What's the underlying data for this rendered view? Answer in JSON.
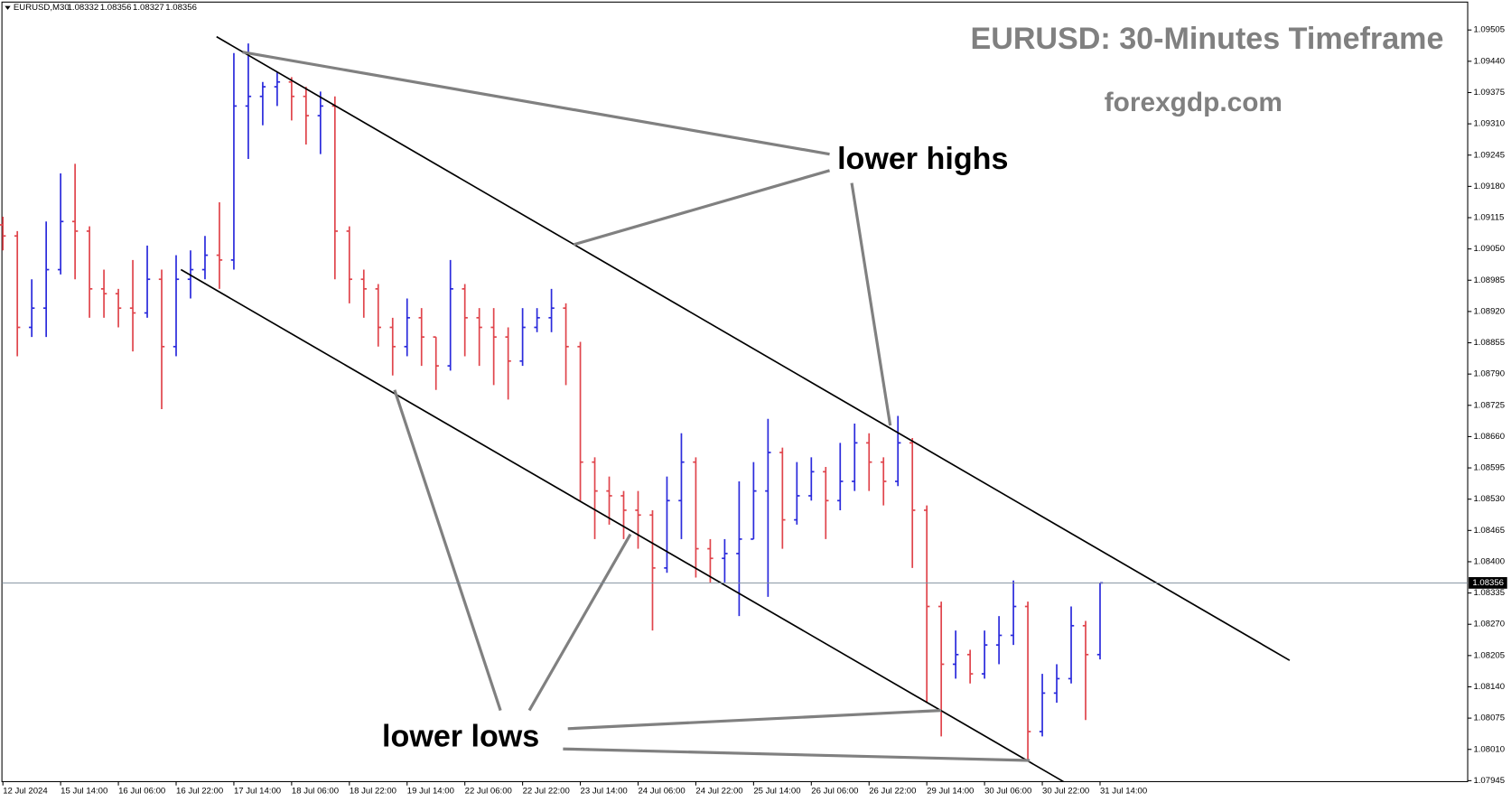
{
  "chart_data": {
    "type": "ohlc",
    "symbol": "EURUSD,M30",
    "header_ohlc": [
      1.08332,
      1.08356,
      1.08327,
      1.08356
    ],
    "title": "EURUSD: 30-Minutes Timeframe",
    "subtitle": "forexgdp.com",
    "annotations": [
      "lower highs",
      "lower lows"
    ],
    "up_color": "#2b2bdc",
    "down_color": "#e0454c",
    "current_price": 1.08356,
    "categories": [
      "12 Jul 2024",
      null,
      null,
      null,
      "15 Jul 14:00",
      null,
      null,
      null,
      "16 Jul 06:00",
      null,
      null,
      null,
      "16 Jul 22:00",
      null,
      null,
      null,
      "17 Jul 14:00",
      null,
      null,
      null,
      "18 Jul 06:00",
      null,
      null,
      null,
      "18 Jul 22:00",
      null,
      null,
      null,
      "19 Jul 14:00",
      null,
      null,
      null,
      "22 Jul 06:00",
      null,
      null,
      null,
      "22 Jul 22:00",
      null,
      null,
      null,
      "23 Jul 14:00",
      null,
      null,
      null,
      "24 Jul 06:00",
      null,
      null,
      null,
      "24 Jul 22:00",
      null,
      null,
      null,
      "25 Jul 14:00",
      null,
      null,
      null,
      "26 Jul 06:00",
      null,
      null,
      null,
      "26 Jul 22:00",
      null,
      null,
      null,
      "29 Jul 14:00",
      null,
      null,
      null,
      "30 Jul 06:00",
      null,
      null,
      null,
      "30 Jul 22:00",
      null,
      null,
      null,
      "31 Jul 14:00"
    ],
    "open": [
      1.091,
      1.09077,
      1.08887,
      1.08927,
      1.09007,
      1.09107,
      1.09087,
      1.08967,
      1.08957,
      1.08927,
      1.08917,
      1.08987,
      1.08847,
      1.08987,
      1.09007,
      1.09037,
      1.09027,
      1.09347,
      1.09367,
      1.09387,
      1.09397,
      1.09367,
      1.09327,
      1.09347,
      1.09087,
      1.08987,
      1.08967,
      1.08887,
      1.08847,
      1.08907,
      1.08867,
      1.08807,
      1.08967,
      1.08907,
      1.08887,
      1.08867,
      1.08817,
      1.08887,
      1.08907,
      1.08927,
      1.08847,
      1.08607,
      1.08547,
      1.08537,
      1.08507,
      1.08497,
      1.08387,
      1.08527,
      1.08607,
      1.08427,
      1.08407,
      1.08417,
      1.08447,
      1.08547,
      1.08627,
      1.08487,
      1.08537,
      1.08587,
      1.08527,
      1.08567,
      1.08647,
      1.08607,
      1.08567,
      1.08647,
      1.08507,
      1.08307,
      1.08187,
      1.08207,
      1.08167,
      1.08227,
      1.08247,
      1.08307,
      1.08047,
      1.08127,
      1.08157,
      1.08267,
      1.08207
    ],
    "high": [
      1.09117,
      1.09087,
      1.08987,
      1.09107,
      1.09207,
      1.09227,
      1.09097,
      1.09007,
      1.08967,
      1.09027,
      1.09057,
      1.09007,
      1.09037,
      1.09047,
      1.09077,
      1.09147,
      1.09457,
      1.09477,
      1.09397,
      1.09417,
      1.09407,
      1.09387,
      1.09377,
      1.09367,
      1.09097,
      1.09007,
      1.08977,
      1.08907,
      1.08947,
      1.08927,
      1.08867,
      1.09027,
      1.08977,
      1.08927,
      1.08927,
      1.08887,
      1.08927,
      1.08927,
      1.08967,
      1.08937,
      1.08857,
      1.08617,
      1.08577,
      1.08547,
      1.08547,
      1.08507,
      1.08577,
      1.08667,
      1.08617,
      1.08447,
      1.08447,
      1.08567,
      1.08607,
      1.08697,
      1.08637,
      1.08607,
      1.08617,
      1.08597,
      1.08647,
      1.08687,
      1.08667,
      1.08617,
      1.08703,
      1.08657,
      1.08517,
      1.08317,
      1.08257,
      1.08217,
      1.08257,
      1.08287,
      1.08361,
      1.08317,
      1.08167,
      1.08187,
      1.08307,
      1.08277,
      1.08356
    ],
    "low": [
      1.09047,
      1.08827,
      1.08867,
      1.08867,
      1.08997,
      1.08987,
      1.08907,
      1.08907,
      1.08887,
      1.08837,
      1.08907,
      1.08717,
      1.08827,
      1.08947,
      1.08987,
      1.08967,
      1.09007,
      1.09237,
      1.09307,
      1.09347,
      1.09317,
      1.09267,
      1.09247,
      1.08987,
      1.08937,
      1.08907,
      1.08847,
      1.08787,
      1.08827,
      1.08807,
      1.08757,
      1.08797,
      1.08827,
      1.08807,
      1.08767,
      1.08737,
      1.08807,
      1.08877,
      1.08877,
      1.08767,
      1.08527,
      1.08447,
      1.08477,
      1.08447,
      1.08427,
      1.08257,
      1.08377,
      1.08447,
      1.08367,
      1.08357,
      1.08357,
      1.08287,
      1.08447,
      1.08327,
      1.08427,
      1.08477,
      1.08527,
      1.08447,
      1.08507,
      1.08547,
      1.08547,
      1.08517,
      1.08557,
      1.08387,
      1.08107,
      1.08037,
      1.08157,
      1.08147,
      1.08157,
      1.08187,
      1.08227,
      1.07987,
      1.08037,
      1.08107,
      1.08147,
      1.08071,
      1.08197
    ],
    "close": [
      1.09077,
      1.08887,
      1.08927,
      1.09007,
      1.09107,
      1.09087,
      1.08967,
      1.08957,
      1.08927,
      1.08917,
      1.08987,
      1.08847,
      1.08987,
      1.09007,
      1.09037,
      1.09027,
      1.09347,
      1.09367,
      1.09387,
      1.09397,
      1.09367,
      1.09327,
      1.09347,
      1.09087,
      1.08987,
      1.08967,
      1.08887,
      1.08847,
      1.08907,
      1.08867,
      1.08807,
      1.08967,
      1.08907,
      1.08887,
      1.08867,
      1.08817,
      1.08887,
      1.08907,
      1.08927,
      1.08847,
      1.08607,
      1.08547,
      1.08537,
      1.08507,
      1.08497,
      1.08387,
      1.08527,
      1.08607,
      1.08427,
      1.08407,
      1.08417,
      1.08447,
      1.08547,
      1.08627,
      1.08487,
      1.08537,
      1.08587,
      1.08527,
      1.08567,
      1.08647,
      1.08607,
      1.08567,
      1.08647,
      1.08507,
      1.08307,
      1.08187,
      1.08207,
      1.08167,
      1.08227,
      1.08247,
      1.08307,
      1.08047,
      1.08127,
      1.08157,
      1.08267,
      1.08207,
      1.08356
    ],
    "ylim": [
      1.07943,
      1.09567
    ],
    "yticks": [
      1.09505,
      {
        "value": 1.0944,
        "label": "1.09440"
      },
      1.09375,
      {
        "value": 1.0931,
        "label": "1.09310"
      },
      1.09245,
      {
        "value": 1.0918,
        "label": "1.09180"
      },
      1.09115,
      {
        "value": 1.0905,
        "label": "1.09050"
      },
      1.08985,
      {
        "value": 1.0892,
        "label": "1.08920"
      },
      1.08855,
      {
        "value": 1.0879,
        "label": "1.08790"
      },
      1.08725,
      {
        "value": 1.0866,
        "label": "1.08660"
      },
      1.08595,
      {
        "value": 1.0853,
        "label": "1.08530"
      },
      1.08465,
      {
        "value": 1.084,
        "label": "1.08400"
      },
      1.08335,
      {
        "value": 1.0827,
        "label": "1.08270"
      },
      1.08205,
      {
        "value": 1.0814,
        "label": "1.08140"
      },
      1.08075,
      {
        "value": 1.0801,
        "label": "1.08010"
      },
      1.07945
    ]
  }
}
